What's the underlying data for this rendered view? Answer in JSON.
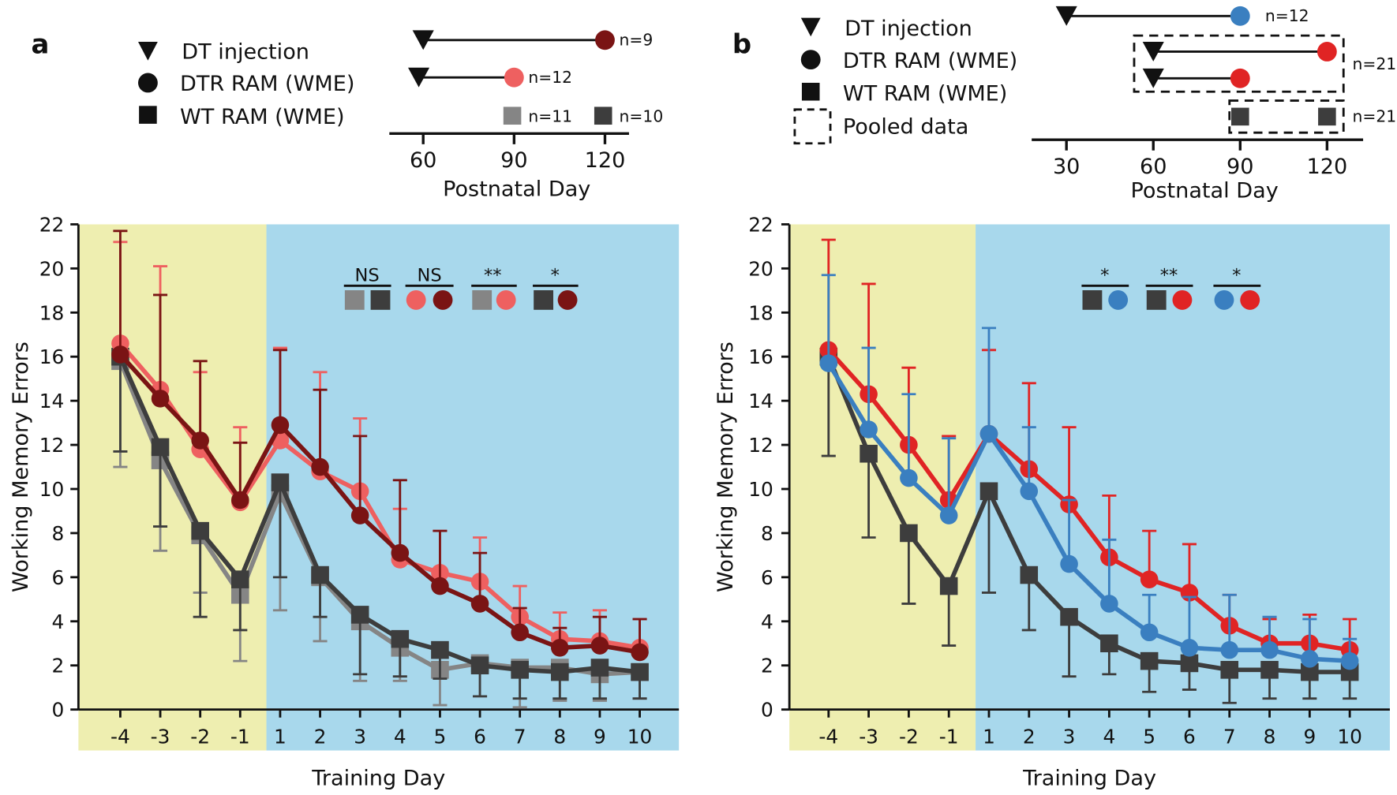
{
  "panels": {
    "a": {
      "letter": "a",
      "legend": [
        "DT injection",
        "DTR RAM (WME)",
        "WT RAM (WME)"
      ],
      "timeline": {
        "xlabel": "Postnatal Day",
        "ticks": [
          60,
          90,
          120
        ],
        "rows": [
          {
            "dt_day": 60,
            "test_day": 120,
            "marker": "circle",
            "color": "#7a1414",
            "n": "n=9"
          },
          {
            "dt_day": 60,
            "test_day": 90,
            "marker": "circle",
            "color": "#ee6060",
            "n": "n=12"
          }
        ],
        "wt": [
          {
            "day": 90,
            "color": "#858585",
            "n": "n=11"
          },
          {
            "day": 120,
            "color": "#3d3d3d",
            "n": "n=10"
          }
        ]
      },
      "significance": [
        {
          "label": "NS",
          "markers": [
            {
              "shape": "square",
              "color": "#858585"
            },
            {
              "shape": "square",
              "color": "#3d3d3d"
            }
          ]
        },
        {
          "label": "NS",
          "markers": [
            {
              "shape": "circle",
              "color": "#ee6060"
            },
            {
              "shape": "circle",
              "color": "#7a1414"
            }
          ]
        },
        {
          "label": "**",
          "markers": [
            {
              "shape": "square",
              "color": "#858585"
            },
            {
              "shape": "circle",
              "color": "#ee6060"
            }
          ]
        },
        {
          "label": "*",
          "markers": [
            {
              "shape": "square",
              "color": "#3d3d3d"
            },
            {
              "shape": "circle",
              "color": "#7a1414"
            }
          ]
        }
      ]
    },
    "b": {
      "letter": "b",
      "legend": [
        "DT injection",
        "DTR RAM (WME)",
        "WT RAM (WME)",
        "Pooled data"
      ],
      "timeline": {
        "xlabel": "Postnatal Day",
        "ticks": [
          30,
          60,
          90,
          120
        ],
        "rows": [
          {
            "dt_day": 30,
            "test_day": 90,
            "marker": "circle",
            "color": "#3a7fc0",
            "n": "n=12"
          },
          {
            "dt_day": 60,
            "test_day": 120,
            "marker": "circle",
            "color": "#e02424"
          },
          {
            "dt_day": 60,
            "test_day": 90,
            "marker": "circle",
            "color": "#e02424"
          }
        ],
        "pooled_dtr_n": "n=21",
        "wt": [
          {
            "day": 90,
            "color": "#3d3d3d"
          },
          {
            "day": 120,
            "color": "#3d3d3d"
          }
        ],
        "pooled_wt_n": "n=21"
      },
      "significance": [
        {
          "label": "*",
          "markers": [
            {
              "shape": "square",
              "color": "#3d3d3d"
            },
            {
              "shape": "circle",
              "color": "#3a7fc0"
            }
          ]
        },
        {
          "label": "**",
          "markers": [
            {
              "shape": "square",
              "color": "#3d3d3d"
            },
            {
              "shape": "circle",
              "color": "#e02424"
            }
          ]
        },
        {
          "label": "*",
          "markers": [
            {
              "shape": "circle",
              "color": "#3a7fc0"
            },
            {
              "shape": "circle",
              "color": "#e02424"
            }
          ]
        }
      ]
    }
  },
  "phase_colors": {
    "pretraining": "#eeeeb0",
    "training": "#a8d8ec"
  },
  "chart_data": [
    {
      "type": "line",
      "panel": "a",
      "xlabel": "Training Day",
      "ylabel": "Working Memory Errors",
      "categories": [
        "-4",
        "-3",
        "-2",
        "-1",
        "1",
        "2",
        "3",
        "4",
        "5",
        "6",
        "7",
        "8",
        "9",
        "10"
      ],
      "ylim": [
        0,
        22
      ],
      "yticks": [
        0,
        2,
        4,
        6,
        8,
        10,
        12,
        14,
        16,
        18,
        20,
        22
      ],
      "grid": false,
      "series": [
        {
          "marker": "square",
          "color": "#858585",
          "values": [
            15.8,
            11.3,
            7.9,
            5.2,
            9.8,
            6.0,
            4.0,
            2.8,
            1.8,
            2.1,
            1.9,
            1.9,
            1.6,
            1.7
          ],
          "error": [
            4.8,
            4.1,
            2.6,
            3.0,
            5.3,
            2.9,
            2.7,
            1.5,
            1.6,
            1.5,
            1.8,
            1.5,
            1.2,
            1.2
          ]
        },
        {
          "marker": "square",
          "color": "#3d3d3d",
          "values": [
            16.0,
            11.9,
            8.1,
            5.9,
            10.3,
            6.1,
            4.3,
            3.2,
            2.7,
            2.0,
            1.8,
            1.7,
            1.9,
            1.7
          ],
          "error": [
            4.3,
            3.6,
            3.9,
            2.3,
            4.3,
            1.9,
            2.7,
            1.7,
            1.3,
            1.4,
            1.3,
            1.2,
            1.4,
            1.2
          ]
        },
        {
          "marker": "circle",
          "color": "#ee6060",
          "values": [
            16.6,
            14.5,
            11.8,
            9.4,
            12.2,
            10.8,
            9.9,
            6.8,
            6.2,
            5.8,
            4.2,
            3.2,
            3.1,
            2.8
          ],
          "error": [
            4.6,
            5.6,
            3.5,
            3.4,
            4.2,
            4.5,
            3.3,
            2.3,
            1.9,
            2.0,
            1.4,
            1.2,
            1.4,
            1.3
          ]
        },
        {
          "marker": "circle",
          "color": "#7a1414",
          "values": [
            16.1,
            14.1,
            12.2,
            9.5,
            12.9,
            11.0,
            8.8,
            7.1,
            5.6,
            4.8,
            3.5,
            2.8,
            2.9,
            2.6
          ],
          "error": [
            5.6,
            4.7,
            3.6,
            2.6,
            3.4,
            3.5,
            3.6,
            3.3,
            2.5,
            2.3,
            1.1,
            0.9,
            1.3,
            1.5
          ]
        }
      ]
    },
    {
      "type": "line",
      "panel": "b",
      "xlabel": "Training Day",
      "ylabel": "Working Memory Errors",
      "categories": [
        "-4",
        "-3",
        "-2",
        "-1",
        "1",
        "2",
        "3",
        "4",
        "5",
        "6",
        "7",
        "8",
        "9",
        "10"
      ],
      "ylim": [
        0,
        22
      ],
      "yticks": [
        0,
        2,
        4,
        6,
        8,
        10,
        12,
        14,
        16,
        18,
        20,
        22
      ],
      "grid": false,
      "series": [
        {
          "marker": "square",
          "color": "#3d3d3d",
          "values": [
            16.0,
            11.6,
            8.0,
            5.6,
            9.9,
            6.1,
            4.2,
            3.0,
            2.2,
            2.1,
            1.8,
            1.8,
            1.7,
            1.7
          ],
          "error": [
            4.5,
            3.8,
            3.2,
            2.7,
            4.6,
            2.5,
            2.7,
            1.4,
            1.4,
            1.2,
            1.5,
            1.3,
            1.2,
            1.2
          ]
        },
        {
          "marker": "circle",
          "color": "#e02424",
          "values": [
            16.3,
            14.3,
            12.0,
            9.5,
            12.5,
            10.9,
            9.3,
            6.9,
            5.9,
            5.3,
            3.8,
            3.0,
            3.0,
            2.7
          ],
          "error": [
            5.0,
            5.0,
            3.5,
            2.9,
            3.8,
            3.9,
            3.5,
            2.8,
            2.2,
            2.2,
            1.4,
            1.1,
            1.3,
            1.4
          ]
        },
        {
          "marker": "circle",
          "color": "#3a7fc0",
          "values": [
            15.7,
            12.7,
            10.5,
            8.8,
            12.5,
            9.9,
            6.6,
            4.8,
            3.5,
            2.8,
            2.7,
            2.7,
            2.3,
            2.2
          ],
          "error": [
            4.0,
            3.7,
            3.8,
            3.5,
            4.8,
            2.9,
            2.9,
            2.9,
            1.7,
            2.3,
            2.5,
            1.5,
            1.8,
            1.0
          ]
        }
      ]
    }
  ]
}
